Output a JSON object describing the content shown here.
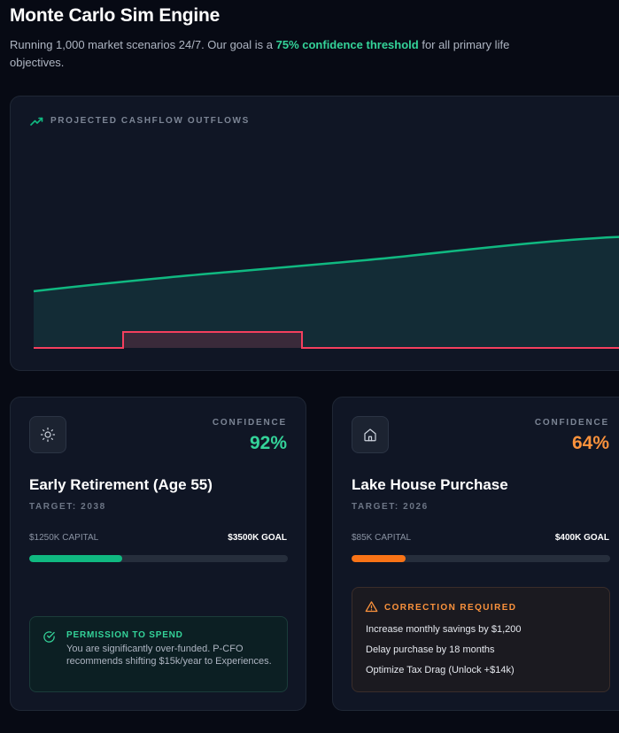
{
  "header": {
    "title": "Monte Carlo Sim Engine",
    "subtitle_pre": "Running 1,000 market scenarios 24/7. Our goal is a ",
    "subtitle_highlight": "75% confidence threshold",
    "subtitle_post": " for all primary life objectives."
  },
  "chart": {
    "label": "PROJECTED CASHFLOW OUTFLOWS",
    "icon": "trending-up-icon",
    "colors": {
      "line": "#10b981",
      "area": "#14303a",
      "outflow": "#f43f5e",
      "outflow_fill": "#3a2a3a"
    }
  },
  "cards": [
    {
      "icon": "sun-icon",
      "confidence_label": "CONFIDENCE",
      "confidence_value": "92%",
      "confidence_color": "#34d399",
      "name": "Early Retirement (Age 55)",
      "target": "TARGET: 2038",
      "capital": "$1250K CAPITAL",
      "goal": "$3500K GOAL",
      "progress": 0.36,
      "bar_color": "#10b981",
      "permission": {
        "icon": "check-circle-icon",
        "title": "PERMISSION TO SPEND",
        "text": "You are significantly over-funded. P-CFO recommends shifting $15k/year to Experiences."
      }
    },
    {
      "icon": "home-icon",
      "confidence_label": "CONFIDENCE",
      "confidence_value": "64%",
      "confidence_color": "#fb923c",
      "name": "Lake House Purchase",
      "target": "TARGET: 2026",
      "capital": "$85K CAPITAL",
      "goal": "$400K GOAL",
      "progress": 0.21,
      "bar_color": "#f97316",
      "correction": {
        "icon": "warning-icon",
        "title": "CORRECTION REQUIRED",
        "items": [
          "Increase monthly savings by $1,200",
          "Delay purchase by 18 months",
          "Optimize Tax Drag (Unlock +$14k)"
        ]
      }
    }
  ]
}
